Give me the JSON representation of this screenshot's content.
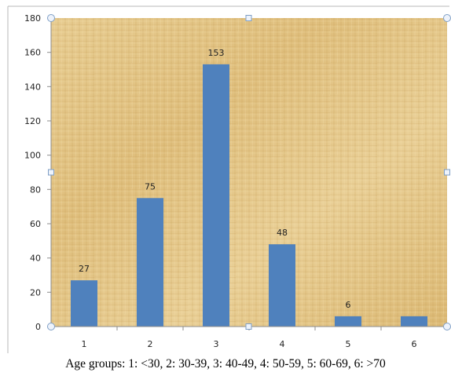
{
  "chart_data": {
    "type": "bar",
    "title": "",
    "xlabel": "",
    "ylabel": "",
    "categories": [
      "1",
      "2",
      "3",
      "4",
      "5",
      "6"
    ],
    "values": [
      27,
      75,
      153,
      48,
      6,
      6
    ],
    "data_labels": [
      "27",
      "75",
      "153",
      "48",
      "6",
      null
    ],
    "ylim": [
      0,
      180
    ],
    "yticks": [
      0,
      20,
      40,
      60,
      80,
      100,
      120,
      140,
      160,
      180
    ],
    "grid": false,
    "legend": "none",
    "bar_color": "#4F81BD",
    "plot_background": "papyrus-texture #E2C17F",
    "caption": "Age groups: 1: <30, 2: 30-39, 3: 40-49, 4: 50-59, 5: 60-69, 6: >70"
  }
}
